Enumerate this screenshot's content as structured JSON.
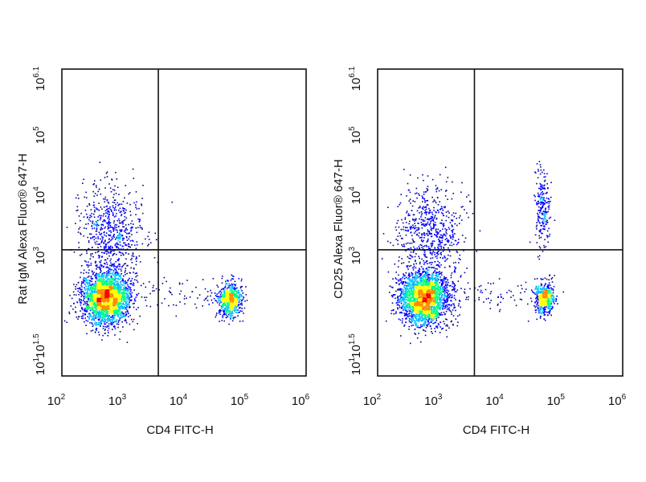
{
  "chart_data": [
    {
      "type": "scatter",
      "plot_style": "density-colored dot plot",
      "xlabel": "CD4 FITC-H",
      "ylabel": "Rat IgM Alexa Fluor® 647-H",
      "x_scale": "log",
      "y_scale": "log",
      "xlim": [
        100,
        1000000
      ],
      "ylim": [
        10,
        1258925
      ],
      "x_ticks": [
        {
          "value": 100,
          "base": "10",
          "exp": "2"
        },
        {
          "value": 1000,
          "base": "10",
          "exp": "3"
        },
        {
          "value": 10000,
          "base": "10",
          "exp": "4"
        },
        {
          "value": 100000,
          "base": "10",
          "exp": "5"
        },
        {
          "value": 1000000,
          "base": "10",
          "exp": "6"
        }
      ],
      "y_ticks": [
        {
          "value": 10,
          "base": "10",
          "exp": "1"
        },
        {
          "value": 31.6,
          "base": "10",
          "exp": "1.5"
        },
        {
          "value": 1000,
          "base": "10",
          "exp": "3"
        },
        {
          "value": 10000,
          "base": "10",
          "exp": "4"
        },
        {
          "value": 100000,
          "base": "10",
          "exp": "5"
        },
        {
          "value": 1258925,
          "base": "10",
          "exp": "6.1"
        }
      ],
      "quadrant_gate": {
        "x": 3800,
        "y": 1250
      },
      "populations": [
        {
          "cx": 520,
          "cy": 200,
          "sx": 0.2,
          "sy": 0.22,
          "n": 2400
        },
        {
          "cx": 650,
          "cy": 2600,
          "sx": 0.26,
          "sy": 0.38,
          "n": 650
        },
        {
          "cx": 55000,
          "cy": 190,
          "sx": 0.1,
          "sy": 0.14,
          "n": 650
        },
        {
          "cx": 9000,
          "cy": 210,
          "sx": 0.45,
          "sy": 0.12,
          "n": 70
        }
      ],
      "colors": [
        "#00008b",
        "#0000ff",
        "#00bfff",
        "#00ff7f",
        "#ffff00",
        "#ff8c00",
        "#ff0000"
      ]
    },
    {
      "type": "scatter",
      "plot_style": "density-colored dot plot",
      "xlabel": "CD4 FITC-H",
      "ylabel": "CD25 Alexa Fluor® 647-H",
      "x_scale": "log",
      "y_scale": "log",
      "xlim": [
        100,
        1000000
      ],
      "ylim": [
        10,
        1258925
      ],
      "x_ticks": [
        {
          "value": 100,
          "base": "10",
          "exp": "2"
        },
        {
          "value": 1000,
          "base": "10",
          "exp": "3"
        },
        {
          "value": 10000,
          "base": "10",
          "exp": "4"
        },
        {
          "value": 100000,
          "base": "10",
          "exp": "5"
        },
        {
          "value": 1000000,
          "base": "10",
          "exp": "6"
        }
      ],
      "y_ticks": [
        {
          "value": 10,
          "base": "10",
          "exp": "1"
        },
        {
          "value": 31.6,
          "base": "10",
          "exp": "1.5"
        },
        {
          "value": 1000,
          "base": "10",
          "exp": "3"
        },
        {
          "value": 10000,
          "base": "10",
          "exp": "4"
        },
        {
          "value": 100000,
          "base": "10",
          "exp": "5"
        },
        {
          "value": 1258925,
          "base": "10",
          "exp": "6.1"
        }
      ],
      "quadrant_gate": {
        "x": 3800,
        "y": 1250
      },
      "populations": [
        {
          "cx": 560,
          "cy": 200,
          "sx": 0.2,
          "sy": 0.22,
          "n": 2400
        },
        {
          "cx": 700,
          "cy": 2500,
          "sx": 0.26,
          "sy": 0.38,
          "n": 650
        },
        {
          "cx": 52000,
          "cy": 200,
          "sx": 0.08,
          "sy": 0.13,
          "n": 500
        },
        {
          "cx": 48000,
          "cy": 6000,
          "sx": 0.06,
          "sy": 0.32,
          "n": 230
        },
        {
          "cx": 9000,
          "cy": 210,
          "sx": 0.45,
          "sy": 0.13,
          "n": 80
        }
      ],
      "colors": [
        "#00008b",
        "#0000ff",
        "#00bfff",
        "#00ff7f",
        "#ffff00",
        "#ff8c00",
        "#ff0000"
      ]
    }
  ]
}
